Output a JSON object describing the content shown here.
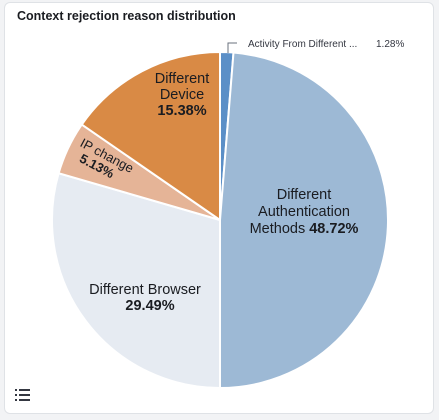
{
  "panel": {
    "title": "Context rejection reason distribution",
    "legend_toggle_icon": "list-icon"
  },
  "chart_data": {
    "type": "pie",
    "title": "Context rejection reason distribution",
    "slices": [
      {
        "name": "Activity From Different ...",
        "value": 1.28,
        "label": "1.28%",
        "color": "#5b8fc7"
      },
      {
        "name": "Different Authentication Methods",
        "value": 48.72,
        "label": "48.72%",
        "color": "#9db9d5"
      },
      {
        "name": "Different Browser",
        "value": 29.49,
        "label": "29.49%",
        "color": "#e6ebf2"
      },
      {
        "name": "IP change",
        "value": 5.13,
        "label": "5.13%",
        "color": "#e5b497"
      },
      {
        "name": "Different Device",
        "value": 15.38,
        "label": "15.38%",
        "color": "#d98a45"
      }
    ]
  }
}
